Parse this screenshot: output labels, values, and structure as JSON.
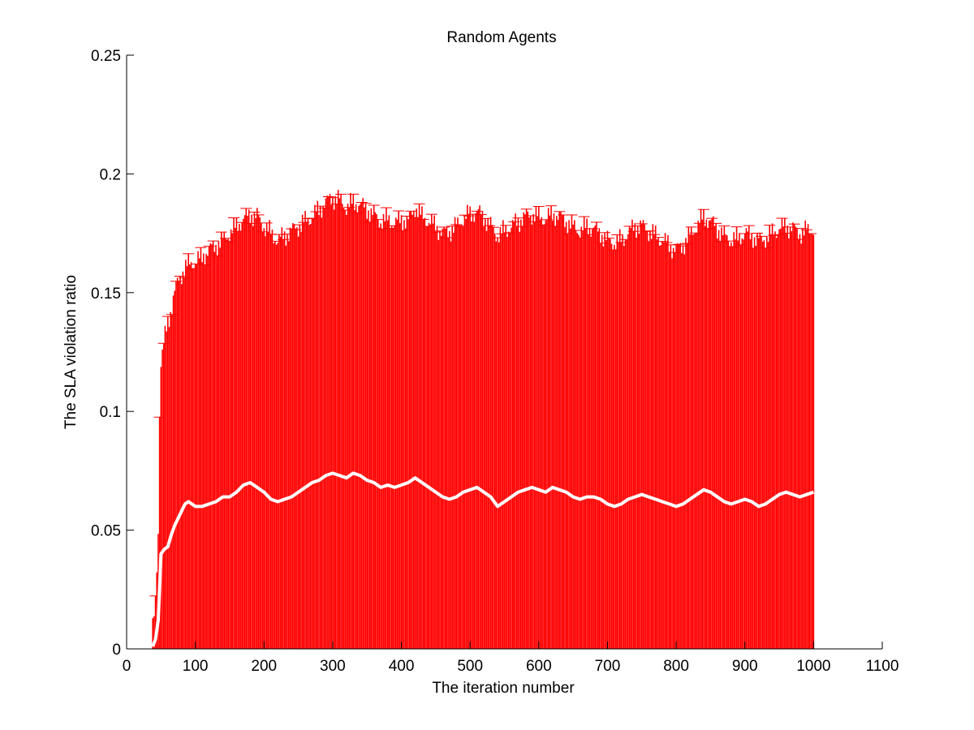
{
  "chart_data": {
    "type": "line",
    "title": "Random Agents",
    "xlabel": "The iteration number",
    "ylabel": "The SLA violation ratio",
    "xlim": [
      0,
      1100
    ],
    "ylim": [
      0,
      0.25
    ],
    "xticks": [
      0,
      100,
      200,
      300,
      400,
      500,
      600,
      700,
      800,
      900,
      1000,
      1100
    ],
    "yticks": [
      0,
      0.05,
      0.1,
      0.15,
      0.2,
      0.25
    ],
    "ytick_labels": [
      "0",
      "0.05",
      "0.1",
      "0.15",
      "0.2",
      "0.25"
    ],
    "grid": false,
    "colors": {
      "error_bars": "#ff0000",
      "mean_line": "#ffffff",
      "axes": "#000000"
    },
    "series": [
      {
        "style": "mean-with-error-bars",
        "x": [
          38,
          42,
          46,
          48,
          50,
          55,
          60,
          65,
          70,
          75,
          80,
          85,
          90,
          100,
          110,
          120,
          130,
          140,
          150,
          160,
          170,
          180,
          190,
          200,
          210,
          220,
          230,
          240,
          250,
          260,
          270,
          280,
          290,
          300,
          310,
          320,
          330,
          340,
          350,
          360,
          370,
          380,
          390,
          400,
          410,
          420,
          430,
          440,
          450,
          460,
          470,
          480,
          490,
          500,
          510,
          520,
          530,
          540,
          550,
          560,
          570,
          580,
          590,
          600,
          610,
          620,
          630,
          640,
          650,
          660,
          670,
          680,
          690,
          700,
          710,
          720,
          730,
          740,
          750,
          760,
          770,
          780,
          790,
          800,
          810,
          820,
          830,
          840,
          850,
          860,
          870,
          880,
          890,
          900,
          910,
          920,
          930,
          940,
          950,
          960,
          970,
          980,
          990,
          1000
        ],
        "mean": [
          0.001,
          0.004,
          0.012,
          0.025,
          0.04,
          0.042,
          0.043,
          0.048,
          0.052,
          0.055,
          0.058,
          0.061,
          0.062,
          0.06,
          0.06,
          0.061,
          0.062,
          0.064,
          0.064,
          0.066,
          0.069,
          0.07,
          0.068,
          0.066,
          0.063,
          0.062,
          0.063,
          0.064,
          0.066,
          0.068,
          0.07,
          0.071,
          0.073,
          0.074,
          0.073,
          0.072,
          0.074,
          0.073,
          0.071,
          0.07,
          0.068,
          0.069,
          0.068,
          0.069,
          0.07,
          0.072,
          0.07,
          0.068,
          0.066,
          0.064,
          0.063,
          0.064,
          0.066,
          0.067,
          0.068,
          0.066,
          0.064,
          0.06,
          0.062,
          0.064,
          0.066,
          0.067,
          0.068,
          0.067,
          0.066,
          0.068,
          0.067,
          0.066,
          0.064,
          0.063,
          0.064,
          0.064,
          0.063,
          0.061,
          0.06,
          0.061,
          0.063,
          0.064,
          0.065,
          0.064,
          0.063,
          0.062,
          0.061,
          0.06,
          0.061,
          0.063,
          0.065,
          0.067,
          0.066,
          0.064,
          0.062,
          0.061,
          0.062,
          0.063,
          0.062,
          0.06,
          0.061,
          0.063,
          0.065,
          0.066,
          0.065,
          0.064,
          0.065,
          0.066
        ],
        "upper": [
          0.008,
          0.02,
          0.05,
          0.1,
          0.12,
          0.13,
          0.138,
          0.143,
          0.15,
          0.155,
          0.158,
          0.16,
          0.162,
          0.163,
          0.165,
          0.168,
          0.17,
          0.172,
          0.175,
          0.178,
          0.181,
          0.183,
          0.182,
          0.178,
          0.175,
          0.172,
          0.174,
          0.176,
          0.178,
          0.18,
          0.182,
          0.185,
          0.188,
          0.19,
          0.189,
          0.186,
          0.188,
          0.187,
          0.185,
          0.183,
          0.18,
          0.181,
          0.179,
          0.181,
          0.18,
          0.186,
          0.182,
          0.18,
          0.178,
          0.175,
          0.176,
          0.178,
          0.181,
          0.183,
          0.184,
          0.182,
          0.178,
          0.174,
          0.176,
          0.178,
          0.18,
          0.182,
          0.183,
          0.182,
          0.181,
          0.183,
          0.182,
          0.18,
          0.178,
          0.176,
          0.178,
          0.177,
          0.175,
          0.172,
          0.171,
          0.172,
          0.175,
          0.178,
          0.178,
          0.176,
          0.174,
          0.172,
          0.17,
          0.168,
          0.17,
          0.174,
          0.178,
          0.182,
          0.18,
          0.177,
          0.174,
          0.172,
          0.173,
          0.175,
          0.174,
          0.172,
          0.173,
          0.175,
          0.177,
          0.178,
          0.177,
          0.175,
          0.176,
          0.177
        ],
        "lower": [
          0,
          0,
          0,
          0,
          0,
          0,
          0,
          0,
          0,
          0,
          0,
          0,
          0,
          0,
          0,
          0,
          0,
          0,
          0,
          0,
          0,
          0,
          0,
          0,
          0,
          0,
          0,
          0,
          0,
          0,
          0,
          0,
          0,
          0,
          0,
          0,
          0,
          0,
          0,
          0,
          0,
          0,
          0,
          0,
          0,
          0,
          0,
          0,
          0,
          0,
          0,
          0,
          0,
          0,
          0,
          0,
          0,
          0,
          0,
          0,
          0,
          0,
          0,
          0,
          0,
          0,
          0,
          0,
          0,
          0,
          0,
          0,
          0,
          0,
          0,
          0,
          0,
          0,
          0,
          0,
          0,
          0,
          0,
          0,
          0,
          0,
          0,
          0,
          0,
          0,
          0,
          0,
          0,
          0,
          0,
          0,
          0,
          0,
          0,
          0,
          0,
          0,
          0,
          0
        ]
      }
    ]
  }
}
